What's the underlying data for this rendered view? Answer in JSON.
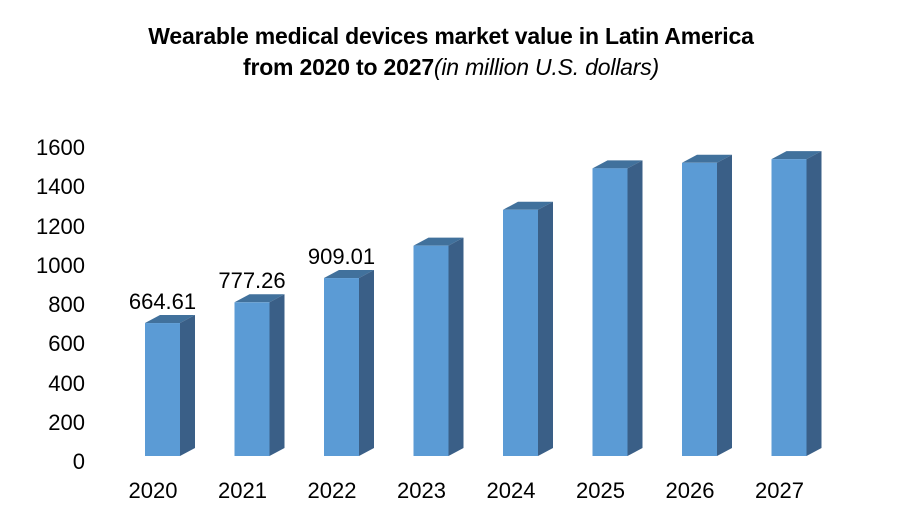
{
  "chart_data": {
    "type": "bar",
    "title_line1": "Wearable medical devices market value in Latin America",
    "title_line2_bold": "from 2020 to 2027",
    "title_line2_italic": "(in million U.S. dollars)",
    "categories": [
      "2020",
      "2021",
      "2022",
      "2023",
      "2024",
      "2025",
      "2026",
      "2027"
    ],
    "values": [
      664.61,
      777.26,
      909.01,
      1085,
      1280,
      1505,
      1535,
      1555
    ],
    "data_labels": [
      "664.61",
      "777.26",
      "909.01",
      "",
      "",
      "",
      "",
      ""
    ],
    "xlabel": "",
    "ylabel": "",
    "ylim": [
      0,
      1600
    ],
    "yticks": [
      0,
      200,
      400,
      600,
      800,
      1000,
      1200,
      1400,
      1600
    ],
    "grid": false,
    "legend": "none",
    "colors": {
      "bar_front": "#5B9BD5",
      "bar_top": "#41719C",
      "bar_side": "#3A5F87",
      "text": "#000000",
      "background": "#FFFFFF"
    }
  }
}
